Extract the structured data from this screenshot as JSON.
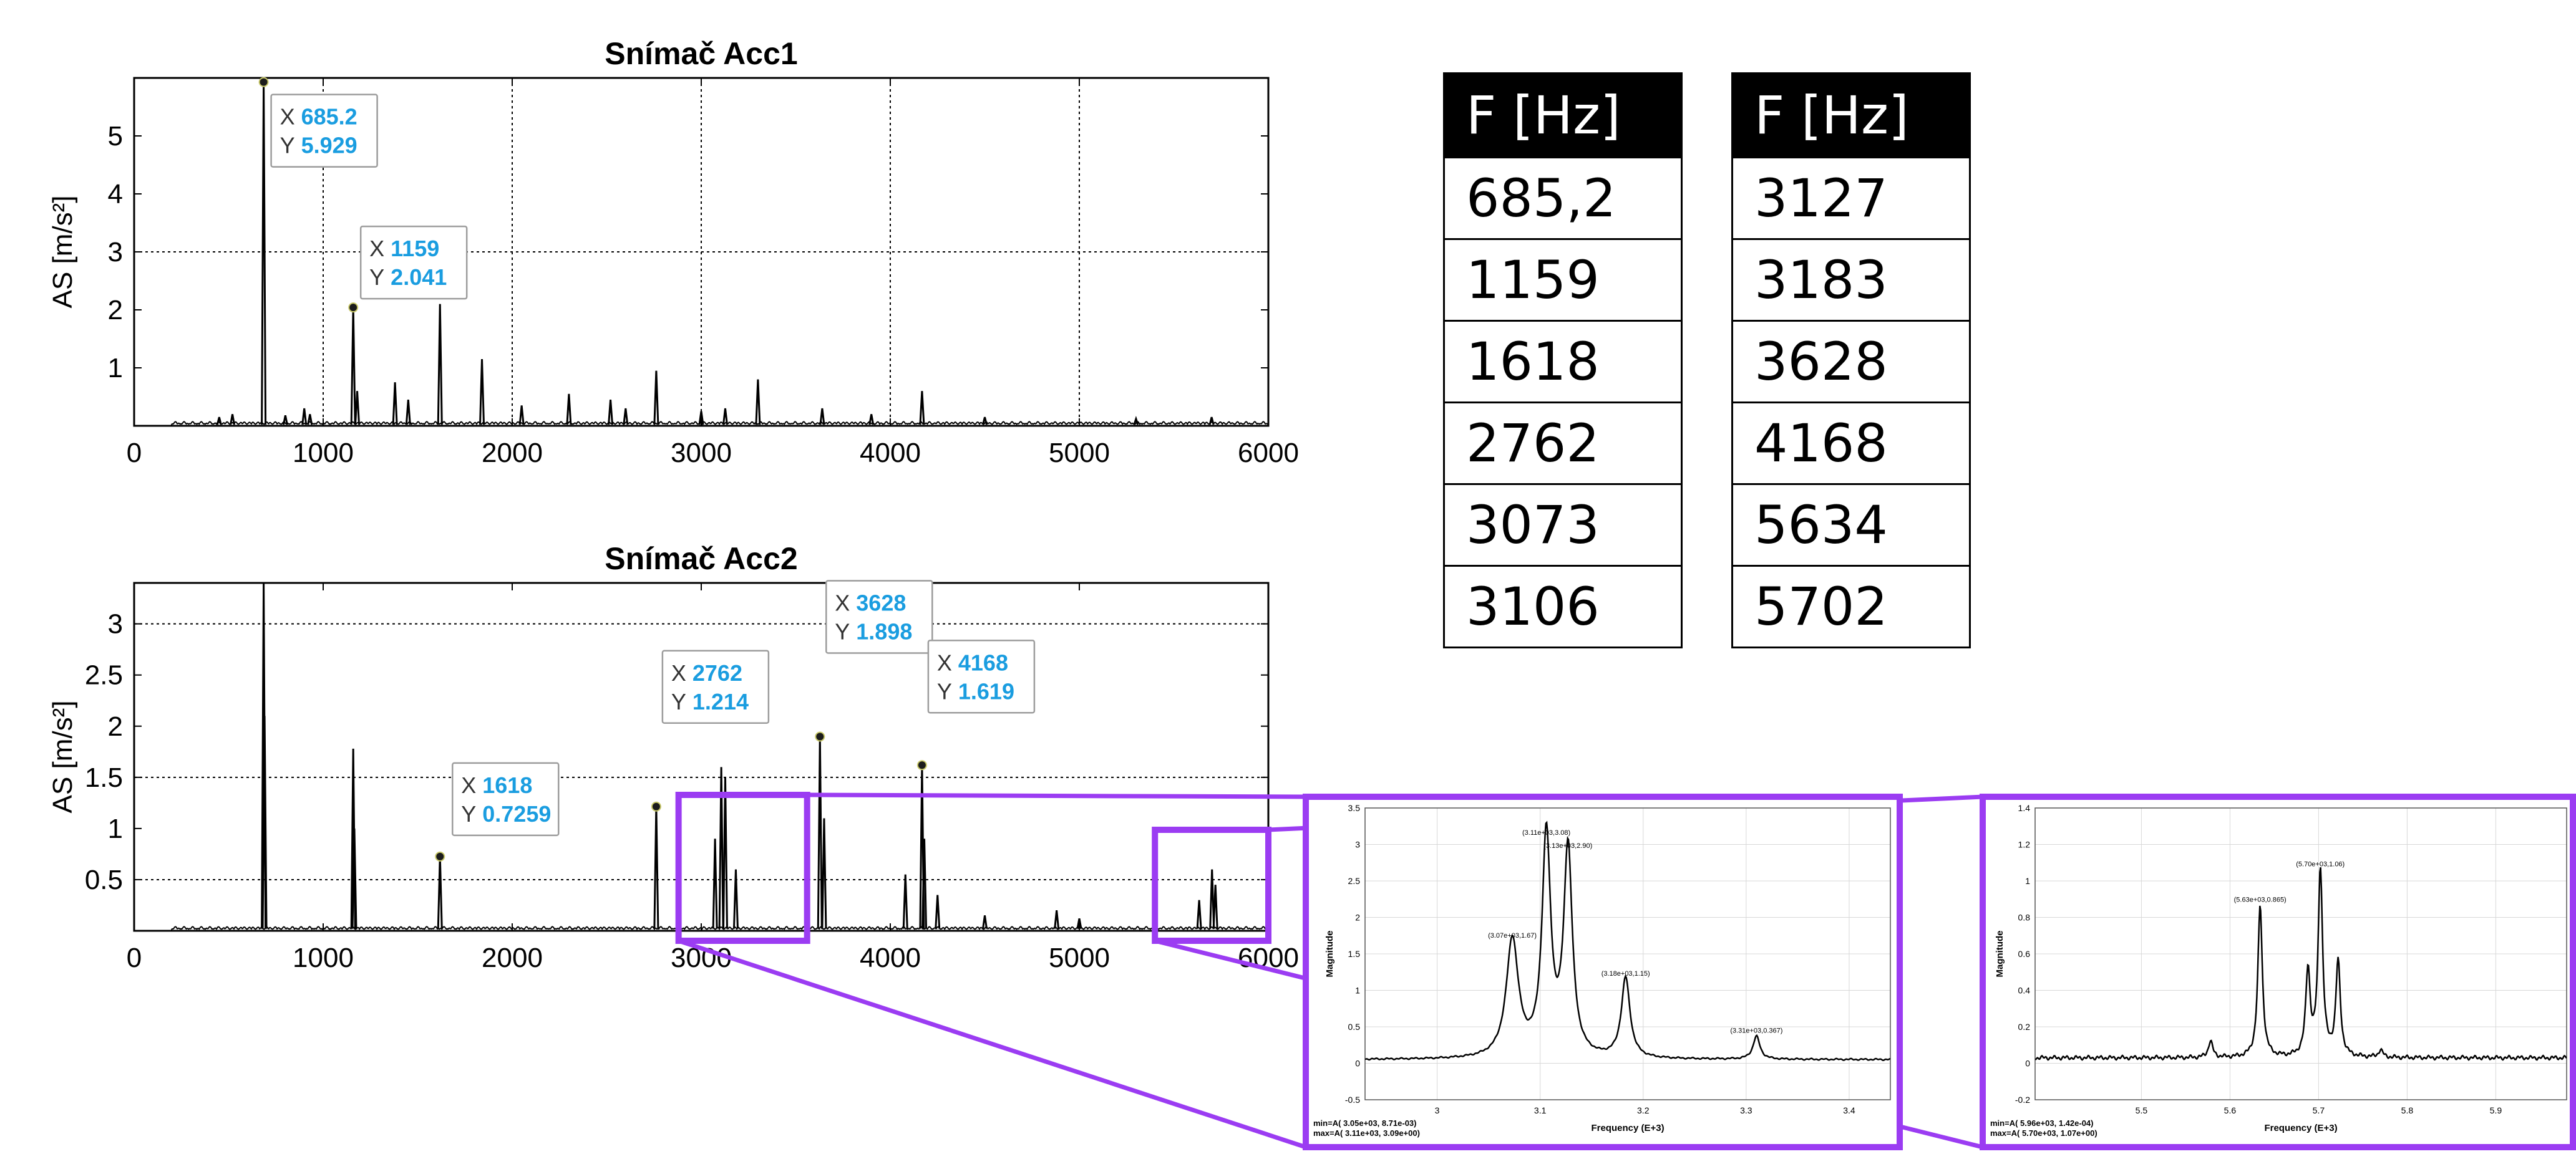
{
  "tables": [
    {
      "header": "F [Hz]",
      "rows": [
        "685,2",
        "1159",
        "1618",
        "2762",
        "3073",
        "3106"
      ]
    },
    {
      "header": "F [Hz]",
      "rows": [
        "3127",
        "3183",
        "3628",
        "4168",
        "5634",
        "5702"
      ]
    }
  ],
  "colors": {
    "callout_value": "#1a9de0",
    "zoom_frame": "#9b3cf2",
    "line": "#000000"
  },
  "chart_data": [
    {
      "type": "line",
      "title": "Snímač Acc1",
      "xlabel": "",
      "ylabel": "AS [m/s²]",
      "xlim": [
        0,
        6000
      ],
      "ylim": [
        0,
        6
      ],
      "x_ticks": [
        "0",
        "1000",
        "2000",
        "3000",
        "4000",
        "5000",
        "6000"
      ],
      "y_ticks": [
        "1",
        "2",
        "3",
        "4",
        "5"
      ],
      "grid": "dotted",
      "peaks": [
        {
          "x": 450,
          "y": 0.15
        },
        {
          "x": 520,
          "y": 0.2
        },
        {
          "x": 685.2,
          "y": 5.929
        },
        {
          "x": 800,
          "y": 0.18
        },
        {
          "x": 900,
          "y": 0.3
        },
        {
          "x": 930,
          "y": 0.2
        },
        {
          "x": 1159,
          "y": 2.041
        },
        {
          "x": 1180,
          "y": 0.6
        },
        {
          "x": 1380,
          "y": 0.75
        },
        {
          "x": 1450,
          "y": 0.45
        },
        {
          "x": 1618,
          "y": 2.1
        },
        {
          "x": 1840,
          "y": 1.15
        },
        {
          "x": 2050,
          "y": 0.35
        },
        {
          "x": 2300,
          "y": 0.55
        },
        {
          "x": 2520,
          "y": 0.45
        },
        {
          "x": 2600,
          "y": 0.3
        },
        {
          "x": 2762,
          "y": 0.95
        },
        {
          "x": 3000,
          "y": 0.25
        },
        {
          "x": 3127,
          "y": 0.3
        },
        {
          "x": 3300,
          "y": 0.8
        },
        {
          "x": 3640,
          "y": 0.3
        },
        {
          "x": 3900,
          "y": 0.2
        },
        {
          "x": 4168,
          "y": 0.6
        },
        {
          "x": 4500,
          "y": 0.15
        },
        {
          "x": 5300,
          "y": 0.12
        },
        {
          "x": 5700,
          "y": 0.15
        }
      ],
      "callouts": [
        {
          "x_label": "X",
          "x_value": "685.2",
          "y_label": "Y",
          "y_value": "5.929",
          "x": 685.2,
          "y": 5.929
        },
        {
          "x_label": "X",
          "x_value": "1159",
          "y_label": "Y",
          "y_value": "2.041",
          "x": 1159,
          "y": 2.041
        }
      ]
    },
    {
      "type": "line",
      "title": "Snímač Acc2",
      "xlabel": "",
      "ylabel": "AS [m/s²]",
      "xlim": [
        0,
        6000
      ],
      "ylim": [
        0,
        3.4
      ],
      "x_ticks": [
        "0",
        "1000",
        "2000",
        "3000",
        "4000",
        "5000",
        "6000"
      ],
      "y_ticks": [
        "0.5",
        "1",
        "1.5",
        "2",
        "2.5",
        "3"
      ],
      "grid": "dotted",
      "peaks": [
        {
          "x": 685.2,
          "y": 3.4
        },
        {
          "x": 690,
          "y": 2.1
        },
        {
          "x": 1159,
          "y": 1.78
        },
        {
          "x": 1165,
          "y": 1.0
        },
        {
          "x": 1618,
          "y": 0.7259
        },
        {
          "x": 2762,
          "y": 1.214
        },
        {
          "x": 3073,
          "y": 0.9
        },
        {
          "x": 3106,
          "y": 1.6
        },
        {
          "x": 3127,
          "y": 1.5
        },
        {
          "x": 3183,
          "y": 0.6
        },
        {
          "x": 3628,
          "y": 1.898
        },
        {
          "x": 3650,
          "y": 1.1
        },
        {
          "x": 4080,
          "y": 0.55
        },
        {
          "x": 4168,
          "y": 1.619
        },
        {
          "x": 4180,
          "y": 0.9
        },
        {
          "x": 4250,
          "y": 0.35
        },
        {
          "x": 4500,
          "y": 0.15
        },
        {
          "x": 4880,
          "y": 0.2
        },
        {
          "x": 5000,
          "y": 0.12
        },
        {
          "x": 5634,
          "y": 0.3
        },
        {
          "x": 5702,
          "y": 0.6
        },
        {
          "x": 5720,
          "y": 0.45
        }
      ],
      "callouts": [
        {
          "x_label": "X",
          "x_value": "1618",
          "y_label": "Y",
          "y_value": "0.7259",
          "x": 1618,
          "y": 0.7259
        },
        {
          "x_label": "X",
          "x_value": "2762",
          "y_label": "Y",
          "y_value": "1.214",
          "x": 2762,
          "y": 1.214
        },
        {
          "x_label": "X",
          "x_value": "3628",
          "y_label": "Y",
          "y_value": "1.898",
          "x": 3628,
          "y": 1.898
        },
        {
          "x_label": "X",
          "x_value": "4168",
          "y_label": "Y",
          "y_value": "1.619",
          "x": 4168,
          "y": 1.619
        }
      ],
      "zoom_regions": [
        [
          2880,
          3560
        ],
        [
          5400,
          6000
        ]
      ]
    },
    {
      "type": "line",
      "title": "",
      "xlabel": "Frequency (E+3)",
      "ylabel": "Magnitude",
      "xlim": [
        2.93,
        3.44
      ],
      "ylim": [
        -0.5,
        3.5
      ],
      "x_ticks": [
        "3",
        "3.1",
        "3.2",
        "3.3",
        "3.4"
      ],
      "y_ticks": [
        "-0.5",
        "0",
        "0.5",
        "1",
        "1.5",
        "2",
        "2.5",
        "3",
        "3.5"
      ],
      "grid": "solid",
      "baseline": 0.05,
      "peaks": [
        {
          "x": 3.073,
          "y": 1.67,
          "w": 0.007,
          "label": "(3.07e+03,1.67)"
        },
        {
          "x": 3.106,
          "y": 3.08,
          "w": 0.005,
          "label": "(3.11e+03,3.08)"
        },
        {
          "x": 3.127,
          "y": 2.9,
          "w": 0.005,
          "label": "(3.13e+03,2.90)"
        },
        {
          "x": 3.183,
          "y": 1.15,
          "w": 0.005,
          "label": "(3.18e+03,1.15)"
        },
        {
          "x": 3.31,
          "y": 0.367,
          "w": 0.004,
          "label": "(3.31e+03,0.367)"
        }
      ],
      "footer": [
        {
          "text": "min=A(    3.05e+03,    8.71e-03)"
        },
        {
          "text": "max=A(    3.11e+03,    3.09e+00)"
        }
      ]
    },
    {
      "type": "line",
      "title": "",
      "xlabel": "Frequency (E+3)",
      "ylabel": "Magnitude",
      "xlim": [
        5.38,
        5.98
      ],
      "ylim": [
        -0.2,
        1.4
      ],
      "x_ticks": [
        "5.5",
        "5.6",
        "5.7",
        "5.8",
        "5.9"
      ],
      "y_ticks": [
        "-0.2",
        "0",
        "0.2",
        "0.4",
        "0.6",
        "0.8",
        "1",
        "1.2",
        "1.4"
      ],
      "grid": "solid",
      "baseline": 0.03,
      "peaks": [
        {
          "x": 5.578,
          "y": 0.12,
          "w": 0.003
        },
        {
          "x": 5.634,
          "y": 0.865,
          "w": 0.003,
          "label": "(5.63e+03,0.865)"
        },
        {
          "x": 5.688,
          "y": 0.5,
          "w": 0.003
        },
        {
          "x": 5.702,
          "y": 1.06,
          "w": 0.003,
          "label": "(5.70e+03,1.06)"
        },
        {
          "x": 5.722,
          "y": 0.55,
          "w": 0.003
        },
        {
          "x": 5.77,
          "y": 0.07,
          "w": 0.003
        }
      ],
      "footer": [
        {
          "text": "min=A(    5.96e+03,    1.42e-04)"
        },
        {
          "text": "max=A(    5.70e+03,    1.07e+00)"
        }
      ]
    }
  ]
}
